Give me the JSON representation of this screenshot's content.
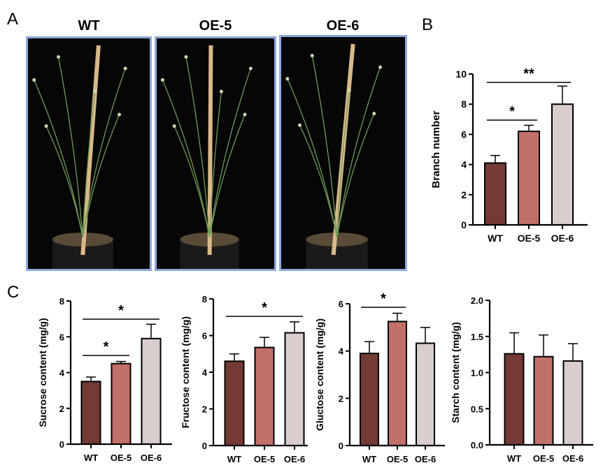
{
  "panel_labels": {
    "a": "A",
    "b": "B",
    "c": "C"
  },
  "photos": [
    {
      "title": "WT"
    },
    {
      "title": "OE-5"
    },
    {
      "title": "OE-6"
    }
  ],
  "colors": {
    "WT": "#733a36",
    "OE-5": "#c2706a",
    "OE-6": "#d9cdcd",
    "photo_border": "#8eaadb"
  },
  "chart_data": [
    {
      "id": "branch",
      "type": "bar",
      "ylabel": "Branch number",
      "categories": [
        "WT",
        "OE-5",
        "OE-6"
      ],
      "values": [
        4.1,
        6.2,
        8.0
      ],
      "errors": [
        0.5,
        0.4,
        1.2
      ],
      "ylim": [
        0,
        10
      ],
      "yticks": [
        0,
        2,
        4,
        6,
        8,
        10
      ],
      "significance": [
        {
          "from": 0,
          "to": 1,
          "label": "*"
        },
        {
          "from": 0,
          "to": 2,
          "label": "**"
        }
      ]
    },
    {
      "id": "sucrose",
      "type": "bar",
      "ylabel": "Sucrose content (mg/g)",
      "categories": [
        "WT",
        "OE-5",
        "OE-6"
      ],
      "values": [
        3.5,
        4.5,
        5.9
      ],
      "errors": [
        0.25,
        0.12,
        0.8
      ],
      "ylim": [
        0,
        8
      ],
      "yticks": [
        0,
        2,
        4,
        6,
        8
      ],
      "significance": [
        {
          "from": 0,
          "to": 1,
          "label": "*"
        },
        {
          "from": 0,
          "to": 2,
          "label": "*"
        }
      ]
    },
    {
      "id": "fructose",
      "type": "bar",
      "ylabel": "Fructose content (mg/g)",
      "categories": [
        "WT",
        "OE-5",
        "OE-6"
      ],
      "values": [
        4.6,
        5.35,
        6.15
      ],
      "errors": [
        0.4,
        0.55,
        0.6
      ],
      "ylim": [
        0,
        8
      ],
      "yticks": [
        0,
        2,
        4,
        6,
        8
      ],
      "significance": [
        {
          "from": 0,
          "to": 2,
          "label": "*"
        }
      ]
    },
    {
      "id": "glucose",
      "type": "bar",
      "ylabel": "Gluctose content (mg/g)",
      "categories": [
        "WT",
        "OE-5",
        "OE-6"
      ],
      "values": [
        3.9,
        5.25,
        4.33
      ],
      "errors": [
        0.5,
        0.35,
        0.67
      ],
      "ylim": [
        0,
        6
      ],
      "yticks": [
        0,
        2,
        4,
        6
      ],
      "significance": [
        {
          "from": 0,
          "to": 1,
          "label": "*"
        }
      ]
    },
    {
      "id": "starch",
      "type": "bar",
      "ylabel": "Starch content (mg/g)",
      "categories": [
        "WT",
        "OE-5",
        "OE-6"
      ],
      "values": [
        1.26,
        1.22,
        1.16
      ],
      "errors": [
        0.29,
        0.3,
        0.24
      ],
      "ylim": [
        0,
        2
      ],
      "yticks": [
        "0.0",
        "0.5",
        "1.0",
        "1.5",
        "2.0"
      ],
      "significance": []
    }
  ]
}
